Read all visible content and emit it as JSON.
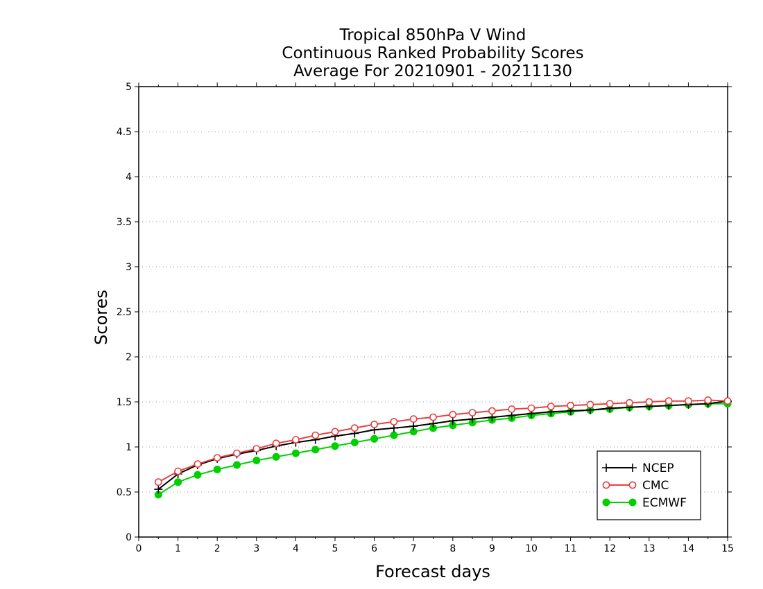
{
  "chart_data": {
    "type": "line",
    "title_lines": [
      "Tropical 850hPa V Wind",
      "Continuous Ranked Probability Scores",
      "Average For 20210901 - 20211130"
    ],
    "xlabel": "Forecast days",
    "ylabel": "Scores",
    "xlim": [
      0,
      15
    ],
    "ylim": [
      0,
      5
    ],
    "x_ticks": [
      "0",
      "1",
      "2",
      "3",
      "4",
      "5",
      "6",
      "7",
      "8",
      "9",
      "10",
      "11",
      "12",
      "13",
      "14",
      "15"
    ],
    "y_ticks": [
      "0",
      "0.5",
      "1",
      "1.5",
      "2",
      "2.5",
      "3",
      "3.5",
      "4",
      "4.5",
      "5"
    ],
    "grid": "horizontal dotted",
    "legend_position": "lower-right",
    "x": [
      0.5,
      1,
      1.5,
      2,
      2.5,
      3,
      3.5,
      4,
      4.5,
      5,
      5.5,
      6,
      6.5,
      7,
      7.5,
      8,
      8.5,
      9,
      9.5,
      10,
      10.5,
      11,
      11.5,
      12,
      12.5,
      13,
      13.5,
      14,
      14.5,
      15
    ],
    "series": [
      {
        "name": "NCEP",
        "color": "#000000",
        "marker": "plus",
        "values": [
          0.53,
          0.7,
          0.8,
          0.87,
          0.92,
          0.96,
          1.01,
          1.05,
          1.08,
          1.12,
          1.15,
          1.19,
          1.21,
          1.23,
          1.26,
          1.29,
          1.31,
          1.33,
          1.35,
          1.37,
          1.39,
          1.4,
          1.41,
          1.43,
          1.44,
          1.45,
          1.46,
          1.47,
          1.48,
          1.51
        ]
      },
      {
        "name": "CMC",
        "color": "#e84040",
        "marker": "open-circle",
        "values": [
          0.61,
          0.73,
          0.81,
          0.88,
          0.93,
          0.98,
          1.04,
          1.08,
          1.13,
          1.17,
          1.21,
          1.25,
          1.28,
          1.31,
          1.33,
          1.36,
          1.38,
          1.4,
          1.42,
          1.43,
          1.45,
          1.46,
          1.47,
          1.48,
          1.49,
          1.5,
          1.51,
          1.51,
          1.52,
          1.51
        ]
      },
      {
        "name": "ECMWF",
        "color": "#00d000",
        "marker": "filled-circle",
        "values": [
          0.47,
          0.61,
          0.69,
          0.75,
          0.8,
          0.85,
          0.89,
          0.93,
          0.97,
          1.01,
          1.05,
          1.09,
          1.13,
          1.17,
          1.21,
          1.24,
          1.27,
          1.3,
          1.32,
          1.35,
          1.37,
          1.39,
          1.41,
          1.42,
          1.44,
          1.45,
          1.46,
          1.47,
          1.48,
          1.48
        ]
      }
    ]
  }
}
